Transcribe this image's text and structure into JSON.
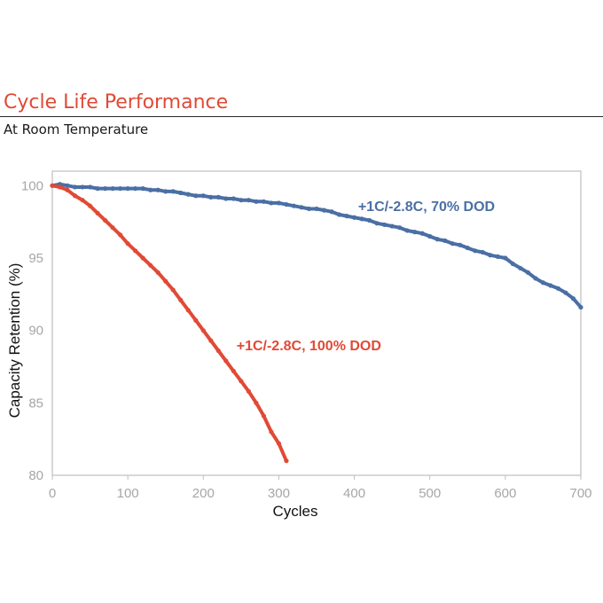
{
  "header": {
    "title": "Cycle Life Performance",
    "subtitle": "At Room Temperature",
    "title_color": "#e04a35"
  },
  "chart_data": {
    "type": "scatter",
    "title": "",
    "xlabel": "Cycles",
    "ylabel": "Capacity Retention (%)",
    "xlim": [
      0,
      700
    ],
    "ylim": [
      80,
      101
    ],
    "x_ticks": [
      0,
      100,
      200,
      300,
      400,
      500,
      600,
      700
    ],
    "y_ticks": [
      80,
      85,
      90,
      95,
      100
    ],
    "grid": false,
    "legend": "none",
    "series": [
      {
        "name": "+1C/-2.8C, 70% DOD",
        "color": "#4a6fa5",
        "x": [
          0,
          10,
          20,
          30,
          40,
          50,
          60,
          70,
          80,
          90,
          100,
          110,
          120,
          130,
          140,
          150,
          160,
          170,
          180,
          190,
          200,
          210,
          220,
          230,
          240,
          250,
          260,
          270,
          280,
          290,
          300,
          310,
          320,
          330,
          340,
          350,
          360,
          370,
          380,
          390,
          400,
          410,
          420,
          430,
          440,
          450,
          460,
          470,
          480,
          490,
          500,
          510,
          520,
          530,
          540,
          550,
          560,
          570,
          580,
          590,
          600,
          610,
          620,
          630,
          640,
          650,
          660,
          670,
          680,
          690,
          700
        ],
        "values": [
          100.0,
          100.1,
          100.0,
          99.9,
          99.9,
          99.9,
          99.8,
          99.8,
          99.8,
          99.8,
          99.8,
          99.8,
          99.8,
          99.7,
          99.7,
          99.6,
          99.6,
          99.5,
          99.4,
          99.3,
          99.3,
          99.2,
          99.2,
          99.1,
          99.1,
          99.0,
          99.0,
          98.9,
          98.9,
          98.8,
          98.8,
          98.7,
          98.6,
          98.5,
          98.4,
          98.4,
          98.3,
          98.2,
          98.0,
          97.9,
          97.8,
          97.7,
          97.6,
          97.4,
          97.3,
          97.2,
          97.1,
          96.9,
          96.8,
          96.7,
          96.5,
          96.3,
          96.2,
          96.0,
          95.9,
          95.7,
          95.5,
          95.4,
          95.2,
          95.1,
          95.0,
          94.6,
          94.3,
          94.0,
          93.6,
          93.3,
          93.1,
          92.9,
          92.6,
          92.2,
          91.6
        ]
      },
      {
        "name": "+1C/-2.8C, 100% DOD",
        "color": "#e04a35",
        "x": [
          0,
          10,
          20,
          30,
          40,
          50,
          60,
          70,
          80,
          90,
          100,
          110,
          120,
          130,
          140,
          150,
          160,
          170,
          180,
          190,
          200,
          210,
          220,
          230,
          240,
          250,
          260,
          270,
          280,
          290,
          300,
          310
        ],
        "values": [
          100.0,
          99.9,
          99.7,
          99.3,
          99.0,
          98.6,
          98.1,
          97.6,
          97.1,
          96.6,
          96.0,
          95.5,
          95.0,
          94.5,
          94.0,
          93.4,
          92.8,
          92.1,
          91.4,
          90.7,
          90.0,
          89.3,
          88.6,
          87.9,
          87.2,
          86.5,
          85.8,
          85.0,
          84.1,
          83.0,
          82.2,
          81.0
        ]
      }
    ],
    "annotations": [
      {
        "text": "+1C/-2.8C, 70% DOD",
        "x": 405,
        "y": 98.6,
        "color": "#4a6fa5"
      },
      {
        "text": "+1C/-2.8C, 100% DOD",
        "x": 244,
        "y": 89.0,
        "color": "#e04a35"
      }
    ]
  }
}
